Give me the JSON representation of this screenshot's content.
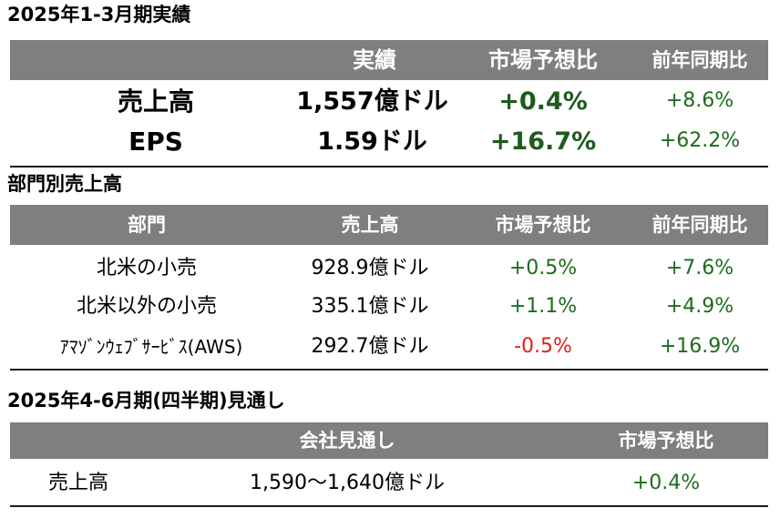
{
  "results": {
    "title": "2025年1-3月期実績",
    "headers": [
      "",
      "実績",
      "市場予想比",
      "前年同期比"
    ],
    "rows": [
      {
        "label": "売上高",
        "actual": "1,557億ドル",
        "vs_estimate": "+0.4%",
        "yoy": "+8.6%"
      },
      {
        "label": "EPS",
        "actual": "1.59ドル",
        "vs_estimate": "+16.7%",
        "yoy": "+62.2%"
      }
    ]
  },
  "segments": {
    "title": "部門別売上高",
    "headers": [
      "部門",
      "売上高",
      "市場予想比",
      "前年同期比"
    ],
    "rows": [
      {
        "label": "北米の小売",
        "sales": "928.9億ドル",
        "vs_estimate": "+0.5%",
        "yoy": "+7.6%"
      },
      {
        "label": "北米以外の小売",
        "sales": "335.1億ドル",
        "vs_estimate": "+1.1%",
        "yoy": "+4.9%"
      },
      {
        "label": "ｱﾏｿﾞﾝｳｪﾌﾞｻｰﾋﾞｽ(AWS)",
        "sales": "292.7億ドル",
        "vs_estimate": "-0.5%",
        "yoy": "+16.9%"
      }
    ]
  },
  "guidance": {
    "title": "2025年4-6月期(四半期)見通し",
    "headers": [
      "",
      "会社見通し",
      "市場予想比"
    ],
    "rows": [
      {
        "label": "売上高",
        "outlook": "1,590～1,640億ドル",
        "vs_estimate": "+0.4%"
      }
    ]
  },
  "colors": {
    "header_bg": "#7f7f7f",
    "positive": "#1e6b1e",
    "negative": "#e0201a"
  }
}
